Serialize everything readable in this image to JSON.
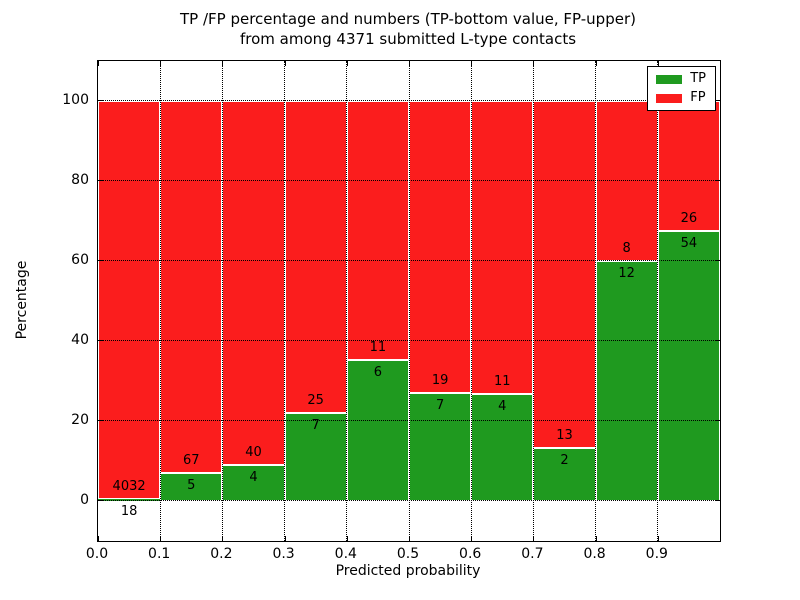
{
  "title": {
    "line1": "TP /FP percentage and numbers (TP-bottom value, FP-upper)",
    "line2": "from among 4371 submitted L-type contacts"
  },
  "axes": {
    "xlabel": "Predicted probability",
    "ylabel": "Percentage"
  },
  "legend": {
    "position": "upper right",
    "items": [
      {
        "label": "TP",
        "color": "#1f9a1f"
      },
      {
        "label": "FP",
        "color": "#fb1d1d"
      }
    ]
  },
  "chart_data": {
    "type": "bar",
    "stacked": true,
    "normalized_to": 100,
    "title": "TP /FP percentage and numbers (TP-bottom value, FP-upper) from among 4371 submitted L-type contacts",
    "xlabel": "Predicted probability",
    "ylabel": "Percentage",
    "total_contacts": 4371,
    "xlim": [
      0.0,
      1.0
    ],
    "ylim": [
      -10,
      110
    ],
    "grid": true,
    "x_tick_labels": [
      "0.0",
      "0.1",
      "0.2",
      "0.3",
      "0.4",
      "0.5",
      "0.6",
      "0.7",
      "0.8",
      "0.9"
    ],
    "y_tick_values": [
      0,
      20,
      40,
      60,
      80,
      100
    ],
    "bin_width": 0.1,
    "bin_starts": [
      0.0,
      0.1,
      0.2,
      0.3,
      0.4,
      0.5,
      0.6,
      0.7,
      0.8,
      0.9
    ],
    "series": [
      {
        "name": "TP",
        "color": "#1f9a1f",
        "counts": [
          18,
          5,
          4,
          7,
          6,
          7,
          4,
          2,
          12,
          54
        ],
        "percent": [
          0.44,
          6.94,
          9.09,
          21.88,
          35.29,
          26.92,
          26.67,
          13.33,
          60.0,
          67.5
        ]
      },
      {
        "name": "FP",
        "color": "#fb1d1d",
        "counts": [
          4032,
          67,
          40,
          25,
          11,
          19,
          11,
          13,
          8,
          26
        ],
        "percent": [
          99.56,
          93.06,
          90.91,
          78.12,
          64.71,
          73.08,
          73.33,
          86.67,
          40.0,
          32.5
        ]
      }
    ]
  }
}
